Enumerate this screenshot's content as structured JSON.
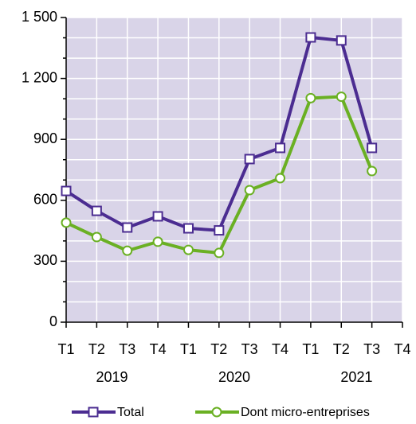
{
  "chart_data": {
    "type": "line",
    "categories": [
      "T1",
      "T2",
      "T3",
      "T4",
      "T1",
      "T2",
      "T3",
      "T4",
      "T1",
      "T2",
      "T3",
      "T4"
    ],
    "year_labels": [
      "2019",
      "2020",
      "2021"
    ],
    "series": [
      {
        "name": "Total",
        "color": "#4b2c91",
        "marker": "square",
        "values": [
          646,
          548,
          466,
          521,
          462,
          452,
          803,
          858,
          1402,
          1387,
          858,
          null
        ]
      },
      {
        "name": "Dont micro-entreprises",
        "color": "#6ab023",
        "marker": "circle",
        "values": [
          490,
          419,
          352,
          396,
          356,
          341,
          650,
          709,
          1103,
          1110,
          744,
          null
        ]
      }
    ],
    "ylim": [
      0,
      1500
    ],
    "yticks": [
      0,
      300,
      600,
      900,
      {
        "value": 1200,
        "label": "1 200"
      },
      {
        "value": 1500,
        "label": "1 500"
      }
    ],
    "y_minor_ticks": [
      100,
      200,
      400,
      500,
      700,
      800,
      1000,
      1100,
      1300,
      1400
    ],
    "grid": true
  }
}
